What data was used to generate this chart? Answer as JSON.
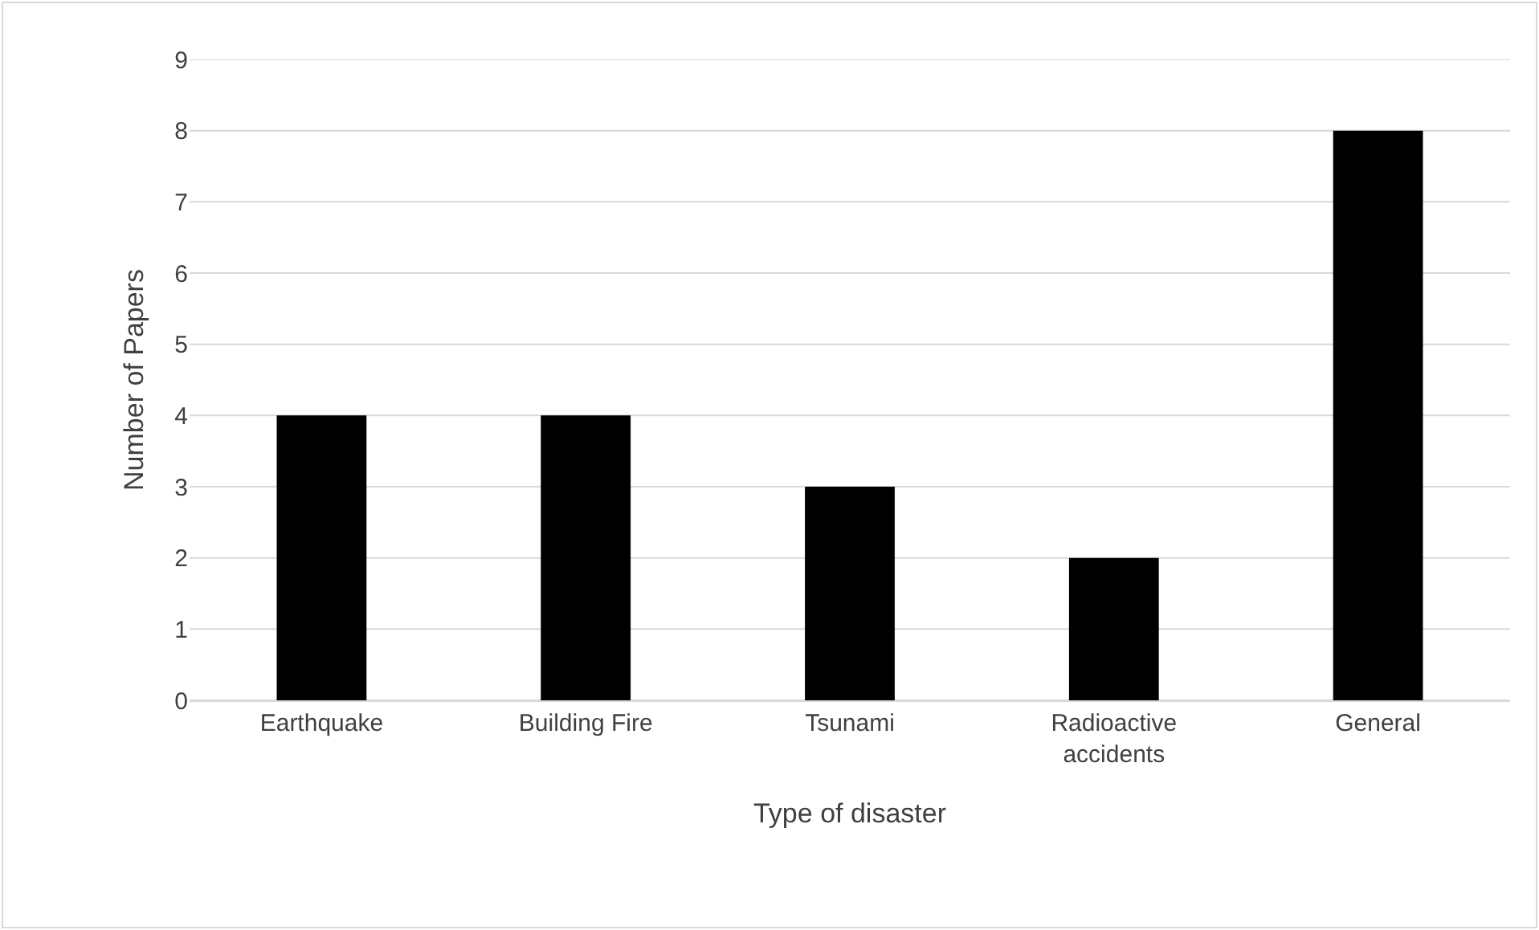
{
  "chart_data": {
    "type": "bar",
    "xlabel": "Type of disaster",
    "ylabel": "Number of Papers",
    "categories": [
      "Earthquake",
      "Building Fire",
      "Tsunami",
      "Radioactive accidents",
      "General"
    ],
    "values": [
      4,
      4,
      3,
      2,
      8
    ],
    "color": "#000000",
    "ylim": [
      0,
      9
    ],
    "yticks": [
      0,
      1,
      2,
      3,
      4,
      5,
      6,
      7,
      8,
      9
    ],
    "grid": "y"
  }
}
